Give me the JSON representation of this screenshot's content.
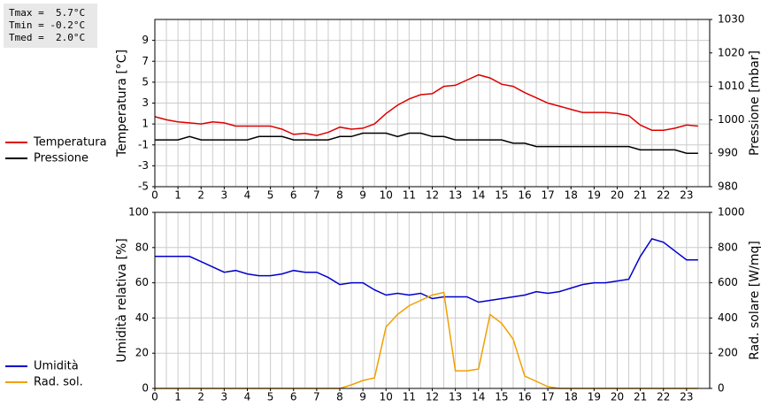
{
  "stats": {
    "tmax": "Tmax =  5.7°C",
    "tmin": "Tmin = -0.2°C",
    "tmed": "Tmed =  2.0°C"
  },
  "colors": {
    "temperature": "#dd0000",
    "pressure": "#000000",
    "humidity": "#0000cc",
    "radiation": "#f0a000",
    "grid": "#cccccc"
  },
  "chart_data": [
    {
      "type": "line",
      "title": "",
      "xlabel": "",
      "ylabel": "Temperatura [°C]",
      "y2label": "Pressione [mbar]",
      "xlim": [
        0,
        24
      ],
      "ylim": [
        -5,
        11
      ],
      "y2lim": [
        980,
        1030
      ],
      "x_ticks": [
        "0",
        "1",
        "2",
        "3",
        "4",
        "5",
        "6",
        "7",
        "8",
        "9",
        "10",
        "11",
        "12",
        "13",
        "14",
        "15",
        "16",
        "17",
        "18",
        "19",
        "20",
        "21",
        "22",
        "23"
      ],
      "y_ticks": [
        "-5",
        "-3",
        "-1",
        "1",
        "3",
        "5",
        "7",
        "9"
      ],
      "y2_ticks": [
        "980",
        "990",
        "1000",
        "1010",
        "1020",
        "1030"
      ],
      "grid": true,
      "legend": "left",
      "series": [
        {
          "name": "Temperatura",
          "axis": "left",
          "color": "#dd0000",
          "x": [
            0,
            0.5,
            1,
            1.5,
            2,
            2.5,
            3,
            3.5,
            4,
            4.5,
            5,
            5.5,
            6,
            6.5,
            7,
            7.5,
            8,
            8.5,
            9,
            9.5,
            10,
            10.5,
            11,
            11.5,
            12,
            12.5,
            13,
            13.5,
            14,
            14.5,
            15,
            15.5,
            16,
            16.5,
            17,
            17.5,
            18,
            18.5,
            19,
            19.5,
            20,
            20.5,
            21,
            21.5,
            22,
            22.5,
            23,
            23.5
          ],
          "y": [
            1.7,
            1.4,
            1.2,
            1.1,
            1.0,
            1.2,
            1.1,
            0.8,
            0.8,
            0.8,
            0.8,
            0.5,
            0.0,
            0.1,
            -0.1,
            0.2,
            0.7,
            0.5,
            0.6,
            1.0,
            2.0,
            2.8,
            3.4,
            3.8,
            3.9,
            4.6,
            4.7,
            5.2,
            5.7,
            5.4,
            4.8,
            4.6,
            4.0,
            3.5,
            3.0,
            2.7,
            2.4,
            2.1,
            2.1,
            2.1,
            2.0,
            1.8,
            0.9,
            0.4,
            0.4,
            0.6,
            0.9,
            0.8
          ]
        },
        {
          "name": "Pressione",
          "axis": "right",
          "color": "#000000",
          "x": [
            0,
            1,
            1.5,
            2,
            2.5,
            3,
            3.5,
            4,
            4.5,
            5,
            5.5,
            6,
            6.5,
            7,
            7.5,
            8,
            8.5,
            9,
            9.5,
            10,
            10.5,
            11,
            11.5,
            12,
            12.5,
            13,
            13.5,
            14,
            14.5,
            15,
            15.5,
            16,
            16.5,
            17,
            17.5,
            18,
            18.5,
            19,
            19.5,
            20,
            20.5,
            21,
            21.5,
            22,
            22.5,
            23,
            23.5
          ],
          "y": [
            994,
            994,
            995,
            994,
            994,
            994,
            994,
            994,
            995,
            995,
            995,
            994,
            994,
            994,
            994,
            995,
            995,
            996,
            996,
            996,
            995,
            996,
            996,
            995,
            995,
            994,
            994,
            994,
            994,
            994,
            993,
            993,
            992,
            992,
            992,
            992,
            992,
            992,
            992,
            992,
            992,
            991,
            991,
            991,
            991,
            990,
            990
          ]
        }
      ]
    },
    {
      "type": "line",
      "title": "",
      "xlabel": "",
      "ylabel": "Umidità relativa [%]",
      "y2label": "Rad. solare [W/mq]",
      "xlim": [
        0,
        24
      ],
      "ylim": [
        0,
        100
      ],
      "y2lim": [
        0,
        1000
      ],
      "x_ticks": [
        "0",
        "1",
        "2",
        "3",
        "4",
        "5",
        "6",
        "7",
        "8",
        "9",
        "10",
        "11",
        "12",
        "13",
        "14",
        "15",
        "16",
        "17",
        "18",
        "19",
        "20",
        "21",
        "22",
        "23"
      ],
      "y_ticks": [
        "0",
        "20",
        "40",
        "60",
        "80",
        "100"
      ],
      "y2_ticks": [
        "0",
        "200",
        "400",
        "600",
        "800",
        "1000"
      ],
      "grid": true,
      "legend": "left",
      "series": [
        {
          "name": "Umidità",
          "axis": "left",
          "color": "#0000cc",
          "x": [
            0,
            0.5,
            1,
            1.5,
            2,
            2.5,
            3,
            3.5,
            4,
            4.5,
            5,
            5.5,
            6,
            6.5,
            7,
            7.5,
            8,
            8.5,
            9,
            9.5,
            10,
            10.5,
            11,
            11.5,
            12,
            12.5,
            13,
            13.5,
            14,
            14.5,
            15,
            15.5,
            16,
            16.5,
            17,
            17.5,
            18,
            18.5,
            19,
            19.5,
            20,
            20.5,
            21,
            21.5,
            22,
            22.5,
            23,
            23.5
          ],
          "y": [
            75,
            75,
            75,
            75,
            72,
            69,
            66,
            67,
            65,
            64,
            64,
            65,
            67,
            66,
            66,
            63,
            59,
            60,
            60,
            56,
            53,
            54,
            53,
            54,
            51,
            52,
            52,
            52,
            49,
            50,
            51,
            52,
            53,
            55,
            54,
            55,
            57,
            59,
            60,
            60,
            61,
            62,
            75,
            85,
            83,
            78,
            73,
            73
          ]
        },
        {
          "name": "Rad. sol.",
          "axis": "right",
          "color": "#f0a000",
          "x": [
            0,
            8,
            8.5,
            9,
            9.5,
            10,
            10.5,
            11,
            11.5,
            12,
            12.5,
            13,
            13.5,
            14,
            14.5,
            15,
            15.5,
            16,
            16.5,
            17,
            17.5,
            18,
            23.5
          ],
          "y": [
            0,
            0,
            20,
            45,
            60,
            350,
            420,
            470,
            500,
            530,
            545,
            100,
            100,
            110,
            420,
            370,
            280,
            70,
            40,
            10,
            0,
            0,
            0
          ]
        }
      ]
    }
  ]
}
